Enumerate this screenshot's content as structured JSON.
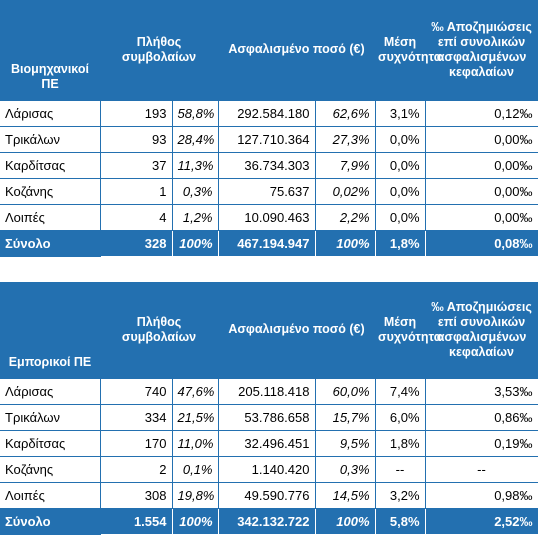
{
  "tables": [
    {
      "header": {
        "title": "Βιομηχανικοί ΠΕ",
        "count": "Πλήθος συμβολαίων",
        "amount": "Ασφαλισμένο ποσό (€)",
        "freq": "Μέση συχνότητα",
        "ratio": "‰ Αποζημιώσεις επί συνολικών ασφαλισμένων κεφαλαίων"
      },
      "rows": [
        [
          "Λάρισας",
          "193",
          "58,8%",
          "292.584.180",
          "62,6%",
          "3,1%",
          "0,12‰"
        ],
        [
          "Τρικάλων",
          "93",
          "28,4%",
          "127.710.364",
          "27,3%",
          "0,0%",
          "0,00‰"
        ],
        [
          "Καρδίτσας",
          "37",
          "11,3%",
          "36.734.303",
          "7,9%",
          "0,0%",
          "0,00‰"
        ],
        [
          "Κοζάνης",
          "1",
          "0,3%",
          "75.637",
          "0,02%",
          "0,0%",
          "0,00‰"
        ],
        [
          "Λοιπές",
          "4",
          "1,2%",
          "10.090.463",
          "2,2%",
          "0,0%",
          "0,00‰"
        ]
      ],
      "total": [
        "Σύνολο",
        "328",
        "100%",
        "467.194.947",
        "100%",
        "1,8%",
        "0,08‰"
      ]
    },
    {
      "header": {
        "title": "Εμπορικοί ΠΕ",
        "count": "Πλήθος συμβολαίων",
        "amount": "Ασφαλισμένο ποσό (€)",
        "freq": "Μέση συχνότητα",
        "ratio": "‰ Αποζημιώσεις επί συνολικών ασφαλισμένων κεφαλαίων"
      },
      "rows": [
        [
          "Λάρισας",
          "740",
          "47,6%",
          "205.118.418",
          "60,0%",
          "7,4%",
          "3,53‰"
        ],
        [
          "Τρικάλων",
          "334",
          "21,5%",
          "53.786.658",
          "15,7%",
          "6,0%",
          "0,86‰"
        ],
        [
          "Καρδίτσας",
          "170",
          "11,0%",
          "32.496.451",
          "9,5%",
          "1,8%",
          "0,19‰"
        ],
        [
          "Κοζάνης",
          "2",
          "0,1%",
          "1.140.420",
          "0,3%",
          "--",
          "--"
        ],
        [
          "Λοιπές",
          "308",
          "19,8%",
          "49.590.776",
          "14,5%",
          "3,2%",
          "0,98‰"
        ]
      ],
      "total": [
        "Σύνολο",
        "1.554",
        "100%",
        "342.132.722",
        "100%",
        "5,8%",
        "2,52‰"
      ]
    }
  ]
}
